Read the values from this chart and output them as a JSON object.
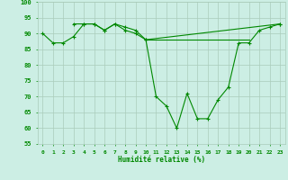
{
  "background_color": "#cceee4",
  "grid_color": "#aaccbb",
  "line_color": "#008800",
  "marker": "+",
  "xlabel": "Humidité relative (%)",
  "ylabel_min": 55,
  "ylabel_max": 100,
  "ylabel_step": 5,
  "x_labels": [
    "0",
    "1",
    "2",
    "3",
    "4",
    "5",
    "6",
    "7",
    "8",
    "9",
    "10",
    "11",
    "12",
    "13",
    "14",
    "15",
    "16",
    "17",
    "18",
    "19",
    "20",
    "21",
    "22",
    "23"
  ],
  "series1": [
    90,
    87,
    87,
    89,
    93,
    93,
    91,
    93,
    91,
    90,
    88,
    70,
    67,
    60,
    71,
    63,
    63,
    69,
    73,
    87,
    87,
    91,
    92,
    93
  ],
  "series2": [
    null,
    null,
    null,
    93,
    93,
    93,
    91,
    93,
    92,
    91,
    88,
    null,
    null,
    null,
    null,
    null,
    null,
    null,
    null,
    null,
    null,
    null,
    null,
    93
  ],
  "series3_x": [
    10,
    11,
    12,
    13,
    14,
    15,
    16,
    17,
    18,
    19,
    20
  ],
  "series3_y": [
    88,
    88,
    88,
    88,
    88,
    88,
    88,
    88,
    88,
    88,
    88
  ]
}
